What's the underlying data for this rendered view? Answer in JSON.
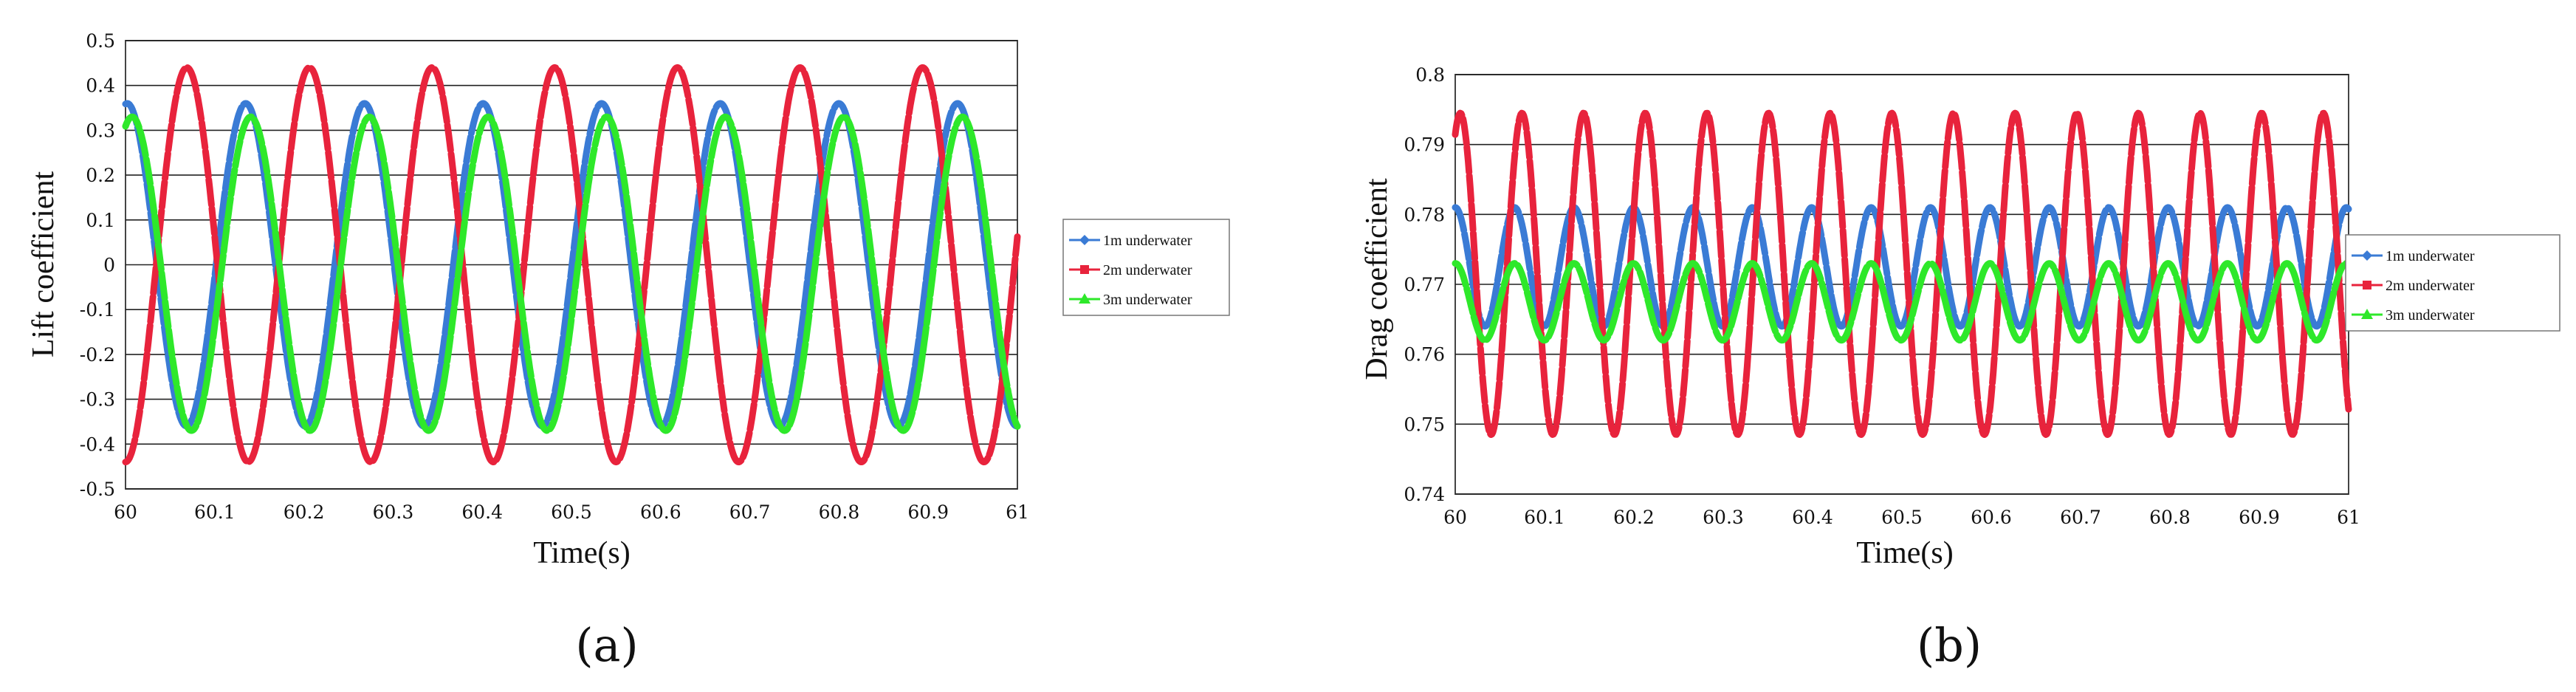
{
  "colors": {
    "1m": "#3a7bd5",
    "2m": "#e8233c",
    "3m": "#2ee82a",
    "grid": "#222222",
    "text": "#111111"
  },
  "chart_data": [
    {
      "type": "line",
      "panel_label": "(a)",
      "xlabel": "Time(s)",
      "ylabel": "Lift  coefficient",
      "xlim": [
        60,
        61
      ],
      "ylim": [
        -0.5,
        0.5
      ],
      "x_ticks": [
        "60",
        "60.1",
        "60.2",
        "60.3",
        "60.4",
        "60.5",
        "60.6",
        "60.7",
        "60.8",
        "60.9",
        "61"
      ],
      "y_ticks": [
        "0.5",
        "0.4",
        "0.3",
        "0.2",
        "0.1",
        "0",
        "-0.1",
        "-0.2",
        "-0.3",
        "-0.4",
        "-0.5"
      ],
      "grid": "horizontal",
      "legend_position": "right",
      "series": [
        {
          "name": "1m underwater",
          "color_key": "1m",
          "mean": 0.0,
          "amplitude": 0.36,
          "period_s": 0.133,
          "phase_deg": 85,
          "dashed": true
        },
        {
          "name": "2m underwater",
          "color_key": "2m",
          "mean": 0.0,
          "amplitude": 0.44,
          "period_s": 0.1375,
          "phase_deg": -90,
          "dashed": true
        },
        {
          "name": "3m underwater",
          "color_key": "3m",
          "mean": -0.02,
          "amplitude": 0.35,
          "period_s": 0.133,
          "phase_deg": 70,
          "dashed": true
        }
      ]
    },
    {
      "type": "line",
      "panel_label": "(b)",
      "xlabel": "Time(s)",
      "ylabel": "Drag  coefficient",
      "xlim": [
        60,
        61
      ],
      "ylim": [
        0.74,
        0.8
      ],
      "x_ticks": [
        "60",
        "60.1",
        "60.2",
        "60.3",
        "60.4",
        "60.5",
        "60.6",
        "60.7",
        "60.8",
        "60.9",
        "61"
      ],
      "y_ticks": [
        "0.8",
        "0.79",
        "0.78",
        "0.77",
        "0.76",
        "0.75",
        "0.74"
      ],
      "grid": "horizontal",
      "legend_position": "right",
      "series": [
        {
          "name": "1m underwater",
          "color_key": "1m",
          "mean": 0.7725,
          "amplitude": 0.0085,
          "period_s": 0.0665,
          "phase_deg": 90,
          "dashed": true
        },
        {
          "name": "2m underwater",
          "color_key": "2m",
          "mean": 0.7715,
          "amplitude": 0.023,
          "period_s": 0.069,
          "phase_deg": 60,
          "dashed": true
        },
        {
          "name": "3m underwater",
          "color_key": "3m",
          "mean": 0.7675,
          "amplitude": 0.0055,
          "period_s": 0.0665,
          "phase_deg": 90,
          "dashed": true
        }
      ]
    }
  ]
}
